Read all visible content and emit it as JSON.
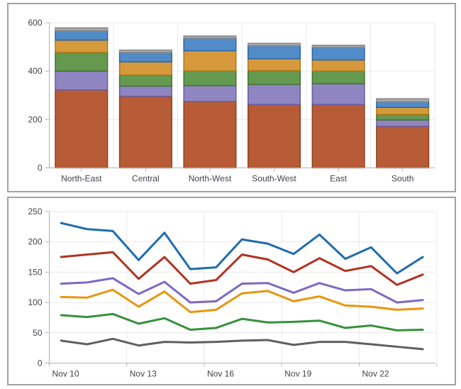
{
  "style": {
    "background": "#ffffff",
    "panel_border_color": "#a2a2a2",
    "grid_color": "#e9e9e9",
    "axis_color": "#b3b3b3",
    "label_color": "#42424b"
  },
  "chart_data": [
    {
      "type": "bar",
      "stacked": true,
      "title": "",
      "categories": [
        "North-East",
        "Central",
        "North-West",
        "South-West",
        "East",
        "South"
      ],
      "series": [
        {
          "name": "rust-series",
          "color": "#b85c37",
          "border_color": "#8e4120",
          "values": [
            322,
            296,
            274,
            262,
            262,
            172
          ]
        },
        {
          "name": "purple-series",
          "color": "#8f85c1",
          "border_color": "#675ca4",
          "values": [
            78,
            42,
            66,
            83,
            86,
            26
          ]
        },
        {
          "name": "green-series",
          "color": "#64994f",
          "border_color": "#41742f",
          "values": [
            77,
            46,
            61,
            57,
            52,
            23
          ]
        },
        {
          "name": "gold-series",
          "color": "#d69a3d",
          "border_color": "#ad7817",
          "values": [
            51,
            54,
            83,
            49,
            46,
            29
          ]
        },
        {
          "name": "blue-series",
          "color": "#528cc8",
          "border_color": "#2c65a4",
          "values": [
            39,
            39,
            52,
            54,
            52,
            23
          ]
        },
        {
          "name": "gray-series",
          "color": "#a9a9a9",
          "border_color": "#8a8a8a",
          "values": [
            12,
            10,
            9,
            10,
            9,
            13
          ]
        }
      ],
      "xlabel": "",
      "ylabel": "",
      "ylim": [
        0,
        600
      ],
      "yticks": [
        0,
        200,
        400,
        600
      ],
      "grid": true,
      "legend": "none"
    },
    {
      "type": "line",
      "title": "",
      "x": [
        "Nov 10",
        "Nov 11",
        "Nov 12",
        "Nov 13",
        "Nov 14",
        "Nov 15",
        "Nov 16",
        "Nov 17",
        "Nov 18",
        "Nov 19",
        "Nov 20",
        "Nov 21",
        "Nov 22",
        "Nov 23",
        "Nov 24"
      ],
      "x_tick_labels": [
        "Nov 10",
        "Nov 13",
        "Nov 16",
        "Nov 19",
        "Nov 22"
      ],
      "series": [
        {
          "name": "blue-series",
          "color": "#1e6cb0",
          "values": [
            231,
            221,
            218,
            170,
            215,
            155,
            158,
            204,
            197,
            180,
            212,
            172,
            191,
            148,
            175
          ]
        },
        {
          "name": "red-series",
          "color": "#b23220",
          "values": [
            175,
            179,
            183,
            139,
            175,
            131,
            137,
            179,
            171,
            150,
            173,
            152,
            160,
            129,
            146
          ]
        },
        {
          "name": "purple-series",
          "color": "#7c68c4",
          "values": [
            131,
            133,
            140,
            114,
            134,
            100,
            102,
            131,
            132,
            116,
            132,
            120,
            122,
            100,
            104
          ]
        },
        {
          "name": "orange-series",
          "color": "#e8950f",
          "values": [
            109,
            108,
            121,
            93,
            118,
            84,
            88,
            115,
            119,
            102,
            110,
            95,
            93,
            88,
            90
          ]
        },
        {
          "name": "green-series",
          "color": "#36913a",
          "values": [
            79,
            76,
            81,
            65,
            74,
            55,
            58,
            73,
            67,
            68,
            70,
            58,
            62,
            54,
            55
          ]
        },
        {
          "name": "gray-series",
          "color": "#5f5f5f",
          "values": [
            37,
            31,
            40,
            29,
            35,
            34,
            35,
            37,
            38,
            30,
            35,
            35,
            31,
            27,
            23
          ]
        }
      ],
      "xlabel": "",
      "ylabel": "",
      "ylim": [
        0,
        250
      ],
      "yticks": [
        0,
        50,
        100,
        150,
        200,
        250
      ],
      "grid": true,
      "legend": "none"
    }
  ]
}
